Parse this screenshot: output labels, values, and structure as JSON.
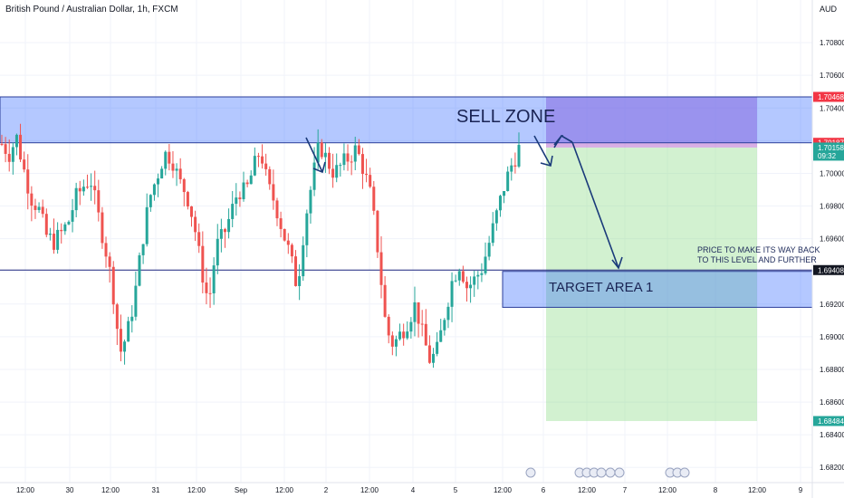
{
  "header": {
    "title": "British Pound / Australian Dollar, 1h, FXCM"
  },
  "axis_unit": "AUD",
  "chart_data": {
    "type": "candlestick",
    "title": "British Pound / Australian Dollar, 1h, FXCM",
    "ylim": [
      1.681,
      1.712
    ],
    "y_ticks": [
      "1.70800",
      "1.70600",
      "1.70400",
      "1.70200",
      "1.70000",
      "1.69800",
      "1.69600",
      "1.69400",
      "1.69200",
      "1.69000",
      "1.68800",
      "1.68600",
      "1.68400",
      "1.68200"
    ],
    "x_ticks": [
      "12:00",
      "30",
      "12:00",
      "31",
      "12:00",
      "Sep",
      "12:00",
      "2",
      "12:00",
      "4",
      "5",
      "12:00",
      "6",
      "12:00",
      "7",
      "12:00",
      "8",
      "12:00",
      "9",
      "12:00"
    ],
    "price_tags": [
      {
        "value": "1.70468",
        "color": "#f23645"
      },
      {
        "value": "1.70187",
        "color": "#f23645"
      },
      {
        "value": "1.70158",
        "color": "#26a69a",
        "countdown": "09:32"
      },
      {
        "value": "1.69408",
        "color": "#131722"
      },
      {
        "value": "1.68484",
        "color": "#26a69a"
      }
    ],
    "zones": [
      {
        "name": "SELL ZONE",
        "from": 1.70187,
        "to": 1.70468,
        "color": "#2962ff"
      },
      {
        "name": "TARGET AREA 1",
        "from": 1.6918,
        "to": 1.694,
        "color": "#2962ff"
      },
      {
        "name": "stop",
        "from": 1.70158,
        "to": 1.70468,
        "color": "#b86bd0"
      },
      {
        "name": "target",
        "from": 1.68484,
        "to": 1.70158,
        "color": "#8fdc8a"
      }
    ],
    "lines": [
      {
        "value": 1.69408,
        "color": "#1a237e"
      }
    ],
    "candles_anchor_closes": [
      1.7018,
      1.7012,
      1.7022,
      1.7002,
      1.6985,
      1.6978,
      1.6962,
      1.6958,
      1.6963,
      1.697,
      1.6985,
      1.6992,
      1.6997,
      1.6975,
      1.6955,
      1.693,
      1.689,
      1.6902,
      1.6925,
      1.6958,
      1.6985,
      1.6998,
      1.7012,
      1.701,
      1.6995,
      1.6988,
      1.697,
      1.6942,
      1.692,
      1.6955,
      1.6962,
      1.6975,
      1.699,
      1.6988,
      1.7002,
      1.7015,
      1.6992,
      1.6982,
      1.6965,
      1.695,
      1.693,
      1.697,
      1.6995,
      1.7018,
      1.7008,
      1.7,
      1.7005,
      1.701,
      1.7015,
      1.7002,
      1.6985,
      1.695,
      1.6905,
      1.6895,
      1.6902,
      1.691,
      1.692,
      1.69,
      1.6885,
      1.6892,
      1.6915,
      1.6935,
      1.6945,
      1.693,
      1.6935,
      1.6942,
      1.6958,
      1.6975,
      1.6992,
      1.7005,
      1.7015
    ]
  },
  "annotations": {
    "sell_zone": "SELL ZONE",
    "target_area": "TARGET AREA 1",
    "note_line1": "PRICE TO MAKE ITS WAY BACK",
    "note_line2": "TO THIS LEVEL AND FURTHER"
  },
  "colors": {
    "up": "#26a69a",
    "down": "#ef5350",
    "axis_text": "#131722"
  }
}
